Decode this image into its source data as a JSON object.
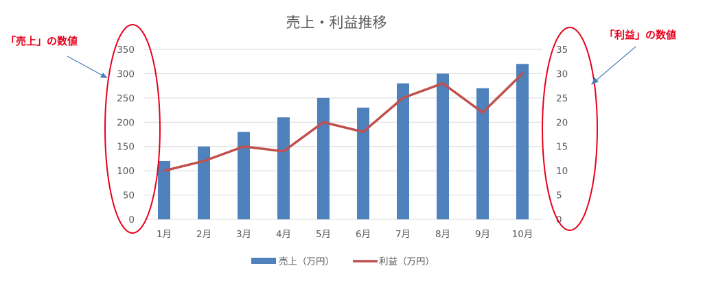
{
  "chart_data": {
    "type": "bar",
    "title": "売上・利益推移",
    "categories": [
      "1月",
      "2月",
      "3月",
      "4月",
      "5月",
      "6月",
      "7月",
      "8月",
      "9月",
      "10月"
    ],
    "series": [
      {
        "name": "売上（万円）",
        "type": "bar",
        "axis": "left",
        "values": [
          120,
          150,
          180,
          210,
          250,
          230,
          280,
          300,
          270,
          320
        ]
      },
      {
        "name": "利益（万円）",
        "type": "line",
        "axis": "right",
        "values": [
          10,
          12,
          15,
          14,
          20,
          18,
          25,
          28,
          22,
          30
        ]
      }
    ],
    "y_left": {
      "min": 0,
      "max": 350,
      "step": 50
    },
    "y_right": {
      "min": 0,
      "max": 35,
      "step": 5
    },
    "grid": true,
    "legend": "bottom"
  },
  "annotations": {
    "left": "「売上」の数値",
    "right": "「利益」の数値"
  },
  "colors": {
    "bar": "#4f81bd",
    "line": "#c0504d",
    "text": "#595959",
    "grid": "#d9d9d9",
    "annotation": "#e8001c",
    "arrow": "#4a7ebb"
  }
}
